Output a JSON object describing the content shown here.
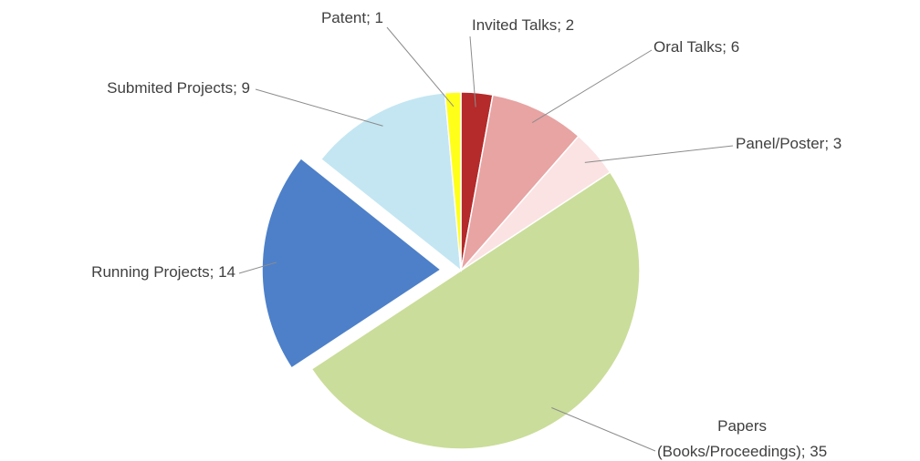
{
  "chart_data": {
    "type": "pie",
    "values": [
      2,
      6,
      3,
      35,
      14,
      9,
      1
    ],
    "value_labels": [
      "Invited Talks; 2",
      "Oral Talks; 6",
      "Panel/Poster; 3",
      "Papers\n(Books/Proceedings); 35",
      "Running Projects; 14",
      "Submited Projects; 9",
      "Patent; 1"
    ],
    "colors": [
      "#b52a2a",
      "#e8a3a3",
      "#fbe3e3",
      "#cadd9a",
      "#4d80c9",
      "#c3e6f2",
      "#ffff1a"
    ],
    "exploded": [
      4
    ]
  }
}
